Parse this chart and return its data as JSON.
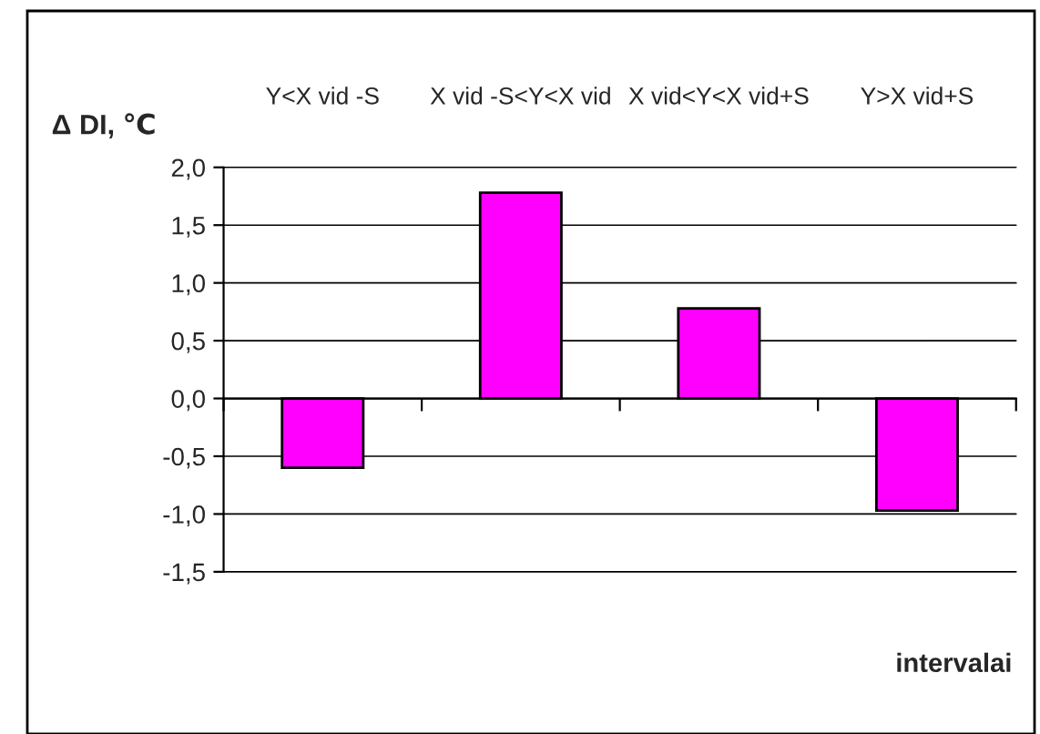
{
  "chart_data": {
    "type": "bar",
    "xlabel": "intervalai",
    "ylabel": "Δ DI, ℃",
    "categories": [
      "Y<X vid -S",
      "X vid -S<Y<X vid",
      "X vid<Y<X vid+S",
      "Y>X vid+S"
    ],
    "values": [
      -0.6,
      1.78,
      0.78,
      -0.97
    ],
    "color": "#ff00ff",
    "ylim": [
      -1.5,
      2
    ],
    "yticks": [
      {
        "value": 2,
        "label": "2,0"
      },
      {
        "value": 1.5,
        "label": "1,5"
      },
      {
        "value": 1,
        "label": "1,0"
      },
      {
        "value": 0.5,
        "label": "0,5"
      },
      {
        "value": 0,
        "label": "0,0"
      },
      {
        "value": -0.5,
        "label": "-0,5"
      },
      {
        "value": -1,
        "label": "-1,0"
      },
      {
        "value": -1.5,
        "label": "-1,5"
      }
    ],
    "grid": "y"
  }
}
